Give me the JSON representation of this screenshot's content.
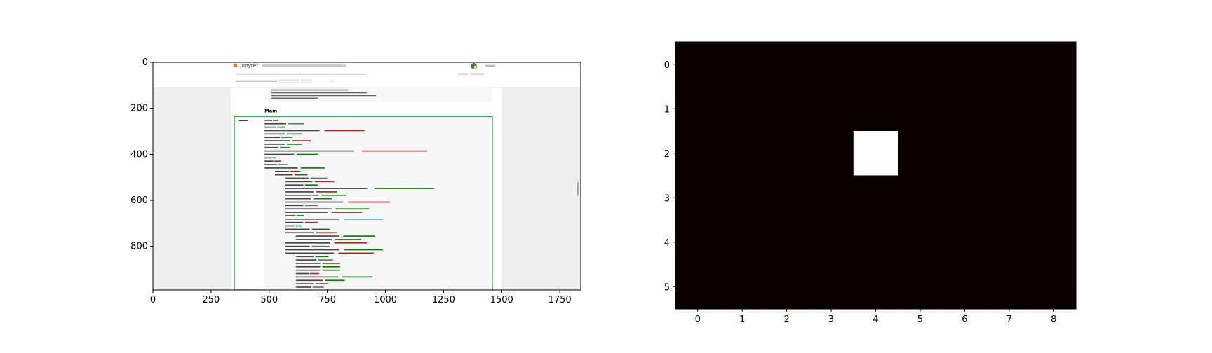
{
  "chart_data": [
    {
      "type": "image",
      "xlim": [
        0,
        1840
      ],
      "ylim": [
        990,
        0
      ],
      "x_ticks": [
        0,
        250,
        500,
        750,
        1000,
        1250,
        1500,
        1750
      ],
      "y_ticks": [
        0,
        200,
        400,
        600,
        800
      ],
      "embedded_screenshot": {
        "app_name": "jupyter",
        "section_heading": "Main",
        "colors": {
          "page_bg": "#efefef",
          "notebook_bg": "#ffffff",
          "cell_border": "#3fa34d",
          "code_bg": "#f7f7f7",
          "keyword": "#008000",
          "string": "#ba2121",
          "comment": "#408080"
        }
      }
    },
    {
      "type": "heatmap",
      "rows": 6,
      "cols": 9,
      "values": [
        [
          0,
          0,
          0,
          0,
          0,
          0,
          0,
          0,
          0
        ],
        [
          0,
          0,
          0,
          0,
          0,
          0,
          0,
          0,
          0
        ],
        [
          0,
          0,
          0,
          0,
          1,
          0,
          0,
          0,
          0
        ],
        [
          0,
          0,
          0,
          0,
          0,
          0,
          0,
          0,
          0
        ],
        [
          0,
          0,
          0,
          0,
          0,
          0,
          0,
          0,
          0
        ],
        [
          0,
          0,
          0,
          0,
          0,
          0,
          0,
          0,
          0
        ]
      ],
      "x_ticks": [
        0,
        1,
        2,
        3,
        4,
        5,
        6,
        7,
        8
      ],
      "y_ticks": [
        0,
        1,
        2,
        3,
        4,
        5
      ],
      "colormap": {
        "low": "#0b0000",
        "high": "#ffffff"
      }
    }
  ]
}
